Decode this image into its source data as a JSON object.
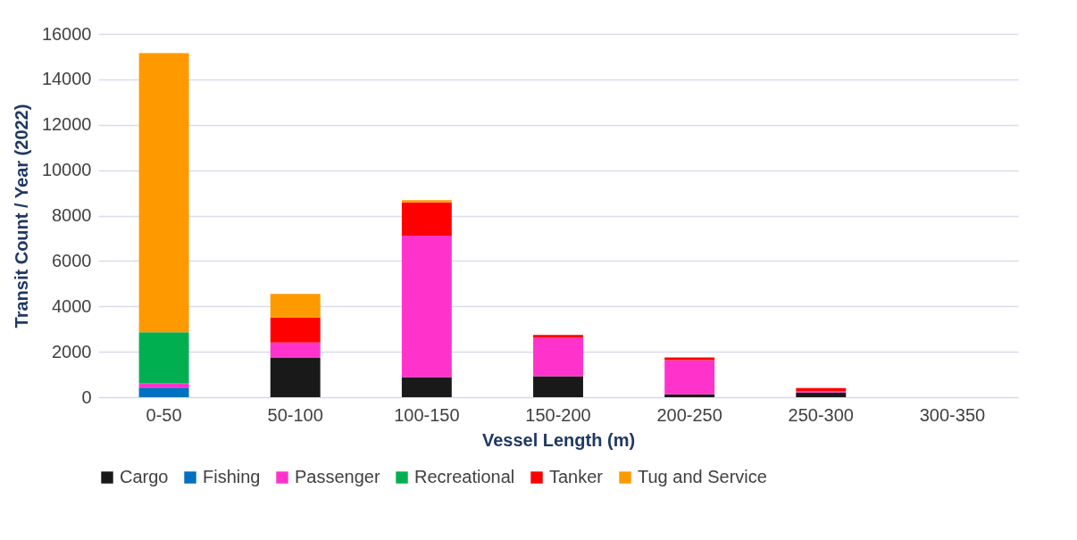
{
  "chart_data": {
    "type": "bar",
    "stacked": true,
    "xlabel": "Vessel Length (m)",
    "ylabel": "Transit Count / Year (2022)",
    "categories": [
      "0-50",
      "50-100",
      "100-150",
      "150-200",
      "200-250",
      "250-300",
      "300-350"
    ],
    "series": [
      {
        "name": "Cargo",
        "color": "#191919",
        "values": [
          0,
          1730,
          880,
          920,
          130,
          210,
          0
        ]
      },
      {
        "name": "Fishing",
        "color": "#0070c0",
        "values": [
          420,
          0,
          0,
          0,
          0,
          0,
          0
        ]
      },
      {
        "name": "Passenger",
        "color": "#ff33cc",
        "values": [
          200,
          680,
          6240,
          1690,
          1500,
          50,
          0
        ]
      },
      {
        "name": "Recreational",
        "color": "#00b050",
        "values": [
          2240,
          0,
          0,
          0,
          0,
          0,
          0
        ]
      },
      {
        "name": "Tanker",
        "color": "#ff0000",
        "values": [
          0,
          1100,
          1460,
          130,
          120,
          140,
          0
        ]
      },
      {
        "name": "Tug and Service",
        "color": "#ff9900",
        "values": [
          12290,
          1040,
          100,
          0,
          0,
          0,
          0
        ]
      }
    ],
    "ylim": [
      0,
      16000
    ],
    "yticks": [
      0,
      2000,
      4000,
      6000,
      8000,
      10000,
      12000,
      14000,
      16000
    ],
    "grid": "y",
    "legend": "bottom"
  }
}
